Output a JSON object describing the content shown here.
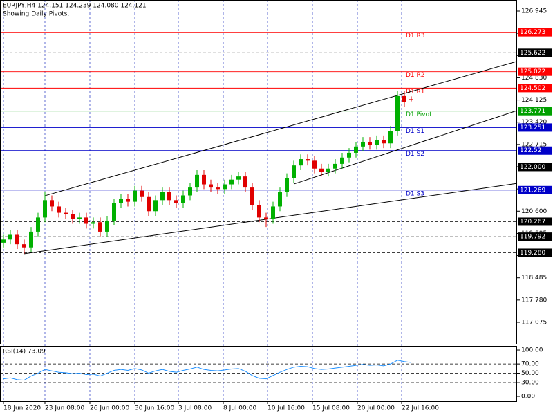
{
  "chart_data": {
    "type": "candlestick",
    "title": "EURJPY,H4  124.151 124.239 124.080 124.121",
    "subtitle": "Showing Daily Pivots.",
    "x": [
      0,
      1,
      2,
      3,
      4,
      5,
      6,
      7,
      8,
      9,
      10,
      11,
      12,
      13,
      14,
      15,
      16,
      17,
      18,
      19,
      20,
      21,
      22,
      23,
      24,
      25,
      26,
      27,
      28,
      29,
      30,
      31,
      32,
      33,
      34,
      35,
      36,
      37,
      38,
      39,
      40,
      41,
      42,
      43,
      44,
      45,
      46,
      47,
      48,
      49,
      50,
      51,
      52,
      53,
      54,
      55,
      56,
      57,
      58,
      59
    ],
    "open": [
      119.6,
      119.7,
      119.85,
      119.55,
      119.45,
      119.95,
      120.4,
      120.95,
      120.75,
      120.55,
      120.5,
      120.35,
      120.4,
      120.2,
      120.25,
      119.95,
      120.3,
      120.85,
      121.0,
      120.9,
      121.25,
      121.05,
      120.6,
      120.95,
      121.2,
      120.95,
      120.85,
      121.1,
      121.35,
      121.75,
      121.45,
      121.35,
      121.3,
      121.45,
      121.6,
      121.7,
      121.35,
      120.8,
      120.4,
      120.35,
      120.75,
      121.2,
      121.65,
      122.05,
      122.25,
      122.2,
      121.95,
      121.85,
      121.95,
      122.1,
      122.3,
      122.45,
      122.65,
      122.8,
      122.7,
      122.85,
      122.75,
      123.15,
      124.25,
      124.151
    ],
    "high": [
      119.85,
      120.0,
      120.0,
      119.7,
      120.1,
      120.55,
      121.2,
      121.1,
      120.9,
      120.7,
      120.65,
      120.55,
      120.55,
      120.4,
      120.4,
      120.45,
      121.0,
      121.15,
      121.15,
      121.4,
      121.4,
      121.2,
      121.1,
      121.35,
      121.35,
      121.1,
      121.25,
      121.5,
      121.9,
      121.9,
      121.6,
      121.5,
      121.6,
      121.75,
      121.85,
      121.85,
      121.5,
      120.95,
      120.55,
      120.9,
      121.35,
      121.8,
      122.2,
      122.4,
      122.4,
      122.35,
      122.1,
      122.1,
      122.25,
      122.45,
      122.6,
      122.8,
      122.95,
      122.95,
      123.0,
      123.0,
      123.3,
      124.4,
      124.4,
      124.239
    ],
    "low": [
      119.45,
      119.55,
      119.4,
      119.25,
      119.3,
      119.8,
      120.25,
      120.6,
      120.4,
      120.35,
      120.2,
      120.2,
      120.05,
      120.05,
      119.8,
      119.8,
      120.15,
      120.7,
      120.75,
      120.75,
      120.9,
      120.45,
      120.45,
      120.8,
      120.8,
      120.7,
      120.7,
      120.95,
      121.2,
      121.3,
      121.2,
      121.15,
      121.15,
      121.3,
      121.45,
      121.2,
      120.65,
      120.25,
      120.1,
      120.2,
      120.6,
      121.05,
      121.5,
      121.9,
      122.05,
      121.8,
      121.7,
      121.7,
      121.8,
      121.95,
      122.15,
      122.3,
      122.5,
      122.55,
      122.55,
      122.6,
      122.6,
      123.0,
      123.9,
      124.08
    ],
    "close": [
      119.7,
      119.85,
      119.55,
      119.45,
      119.95,
      120.4,
      120.95,
      120.75,
      120.55,
      120.5,
      120.35,
      120.4,
      120.2,
      120.25,
      119.95,
      120.3,
      120.85,
      121.0,
      120.9,
      121.25,
      121.05,
      120.6,
      120.95,
      121.2,
      120.95,
      120.85,
      121.1,
      121.35,
      121.75,
      121.45,
      121.35,
      121.3,
      121.45,
      121.6,
      121.7,
      121.35,
      120.8,
      120.4,
      120.35,
      120.75,
      121.2,
      121.65,
      122.05,
      122.25,
      122.2,
      121.95,
      121.85,
      121.95,
      122.1,
      122.3,
      122.45,
      122.65,
      122.8,
      122.7,
      122.85,
      122.75,
      123.15,
      124.25,
      124.05,
      124.121
    ],
    "up_color": "#00b000",
    "down_color": "#e00000",
    "ylim": [
      116.395,
      127.296
    ],
    "yticks": [
      126.945,
      {
        "value": 126.24,
        "label": "126.240"
      },
      125.535,
      {
        "value": 124.83,
        "label": "124.830"
      },
      124.125,
      {
        "value": 123.42,
        "label": "123.420"
      },
      122.715,
      {
        "value": 122.01,
        "label": "122.010"
      },
      121.305,
      {
        "value": 120.6,
        "label": "120.600"
      },
      119.895,
      {
        "value": 119.19,
        "label": "119.190"
      },
      118.485,
      {
        "value": 117.78,
        "label": "117.780"
      },
      117.075
    ],
    "xlim": [
      -0.5,
      74.3
    ],
    "xticks": [
      {
        "value": 0,
        "label": "18 Jun 2020"
      },
      {
        "value": 6,
        "label": "23 Jun 08:00"
      },
      {
        "value": 12.5,
        "label": "26 Jun 00:00"
      },
      {
        "value": 19,
        "label": "30 Jun 16:00"
      },
      {
        "value": 25.3,
        "label": "3 Jul 08:00"
      },
      {
        "value": 31.8,
        "label": "8 Jul 00:00"
      },
      {
        "value": 38.2,
        "label": "10 Jul 16:00"
      },
      {
        "value": 44.7,
        "label": "15 Jul 08:00"
      },
      {
        "value": 51.2,
        "label": "20 Jul 00:00"
      },
      {
        "value": 57.6,
        "label": "22 Jul 16:00"
      }
    ],
    "grid": true,
    "levels": [
      {
        "name": "D1 R3",
        "value": 126.273,
        "color": "#ff0000"
      },
      {
        "name": "D1 R2",
        "value": 125.022,
        "color": "#ff0000"
      },
      {
        "name": "D1 R1",
        "value": 124.502,
        "color": "#ff0000"
      },
      {
        "name": "D1 Pivot",
        "value": 123.771,
        "color": "#00a000"
      },
      {
        "name": "D1 S1",
        "value": 123.251,
        "color": "#0000c8"
      },
      {
        "name": "D1 S2",
        "value": 122.52,
        "color": "#0000c8"
      },
      {
        "name": "D1 S3",
        "value": 121.269,
        "color": "#0000c8"
      }
    ],
    "marker_lines": [
      {
        "value": 125.622
      },
      {
        "value": 122,
        "value_label": "122.000"
      },
      {
        "value": 120.267
      },
      {
        "value": 119.792
      },
      {
        "value": 119.28,
        "value_label": "119.280"
      }
    ],
    "trendlines": [
      {
        "x": [
          6,
          74.3
        ],
        "y": [
          121.09,
          125.35
        ]
      },
      {
        "x": [
          3,
          74.3
        ],
        "y": [
          119.25,
          121.48
        ]
      },
      {
        "x": [
          42,
          74.3
        ],
        "y": [
          121.46,
          123.79
        ]
      }
    ],
    "rsi": {
      "name": "RSI(14)",
      "color": "#1e90ff",
      "values": [
        38,
        40,
        36,
        35,
        44,
        50,
        58,
        55,
        52,
        51,
        49,
        50,
        47,
        48,
        44,
        50,
        56,
        58,
        56,
        60,
        57,
        50,
        55,
        58,
        54,
        52,
        56,
        59,
        63,
        58,
        56,
        55,
        57,
        59,
        60,
        54,
        45,
        39,
        38,
        45,
        52,
        58,
        63,
        65,
        64,
        60,
        58,
        59,
        61,
        63,
        65,
        67,
        69,
        67,
        68,
        66,
        70,
        78,
        75,
        73.09
      ],
      "ylim": [
        -10.4,
        109
      ],
      "yticks": [
        {
          "value": 100,
          "label": "100.00"
        },
        {
          "value": 70,
          "label": "70.00"
        },
        {
          "value": 50,
          "label": "50.00"
        },
        {
          "value": 30,
          "label": "30.00"
        },
        {
          "value": 0,
          "label": "0.00"
        }
      ],
      "dashed_levels": [
        70,
        50,
        30
      ]
    }
  }
}
